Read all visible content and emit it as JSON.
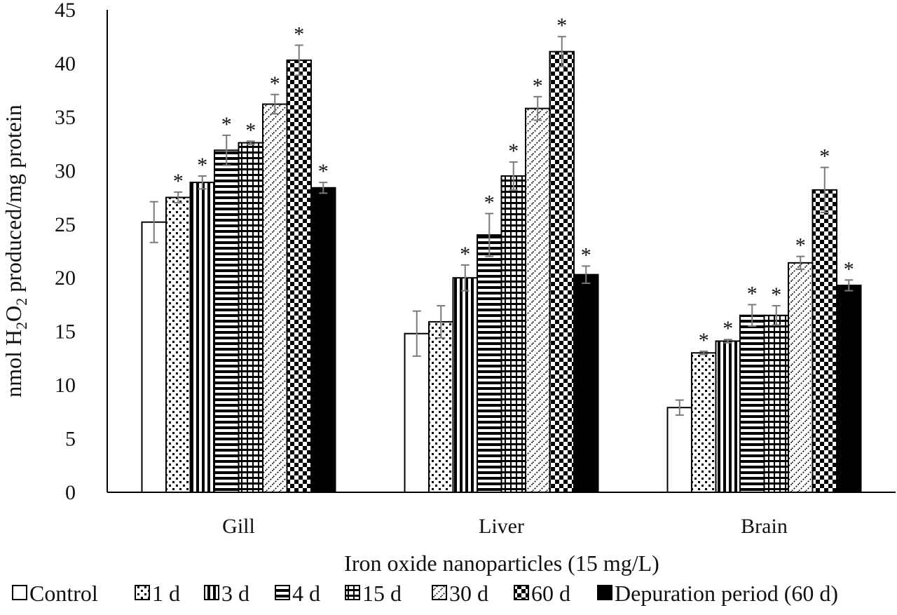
{
  "chart_data": {
    "type": "bar",
    "categories": [
      "Gill",
      "Liver",
      "Brain"
    ],
    "xlabel": "Iron oxide nanoparticles (15 mg/L)",
    "ylabel": {
      "prefix": "nmol H",
      "sub1": "2",
      "mid": "O",
      "sub2": "2",
      "suffix": " produced/mg protein"
    },
    "ylim": [
      0,
      45
    ],
    "yticks": [
      "0",
      "5",
      "10",
      "15",
      "20",
      "25",
      "30",
      "35",
      "40",
      "45"
    ],
    "grid": false,
    "legend_position": "bottom",
    "significance_marker": "*",
    "series": [
      {
        "name": "Control",
        "pattern": "blank",
        "values": [
          25.2,
          14.8,
          7.9
        ],
        "errors": [
          1.9,
          2.1,
          0.7
        ],
        "significant": [
          false,
          false,
          false
        ]
      },
      {
        "name": "1 d",
        "pattern": "dots",
        "values": [
          27.5,
          15.9,
          13.0
        ],
        "errors": [
          0.5,
          1.5,
          0.15
        ],
        "significant": [
          true,
          false,
          true
        ]
      },
      {
        "name": "3 d",
        "pattern": "vlines",
        "values": [
          28.9,
          20.0,
          14.1
        ],
        "errors": [
          0.6,
          1.2,
          0.15
        ],
        "significant": [
          true,
          true,
          true
        ]
      },
      {
        "name": "4 d",
        "pattern": "hlines",
        "values": [
          31.9,
          24.0,
          16.5
        ],
        "errors": [
          1.4,
          2.0,
          1.0
        ],
        "significant": [
          true,
          true,
          true
        ]
      },
      {
        "name": "15 d",
        "pattern": "grid",
        "values": [
          32.6,
          29.5,
          16.5
        ],
        "errors": [
          0.15,
          1.3,
          0.9
        ],
        "significant": [
          true,
          true,
          true
        ]
      },
      {
        "name": "30 d",
        "pattern": "diag",
        "values": [
          36.2,
          35.8,
          21.4
        ],
        "errors": [
          0.9,
          1.1,
          0.6
        ],
        "significant": [
          true,
          true,
          true
        ]
      },
      {
        "name": "60 d",
        "pattern": "checker",
        "values": [
          40.3,
          41.1,
          28.2
        ],
        "errors": [
          1.4,
          1.4,
          2.1
        ],
        "significant": [
          true,
          true,
          true
        ]
      },
      {
        "name": "Depuration period (60 d)",
        "pattern": "solid",
        "values": [
          28.4,
          20.3,
          19.3
        ],
        "errors": [
          0.5,
          0.8,
          0.5
        ],
        "significant": [
          true,
          true,
          true
        ]
      }
    ]
  }
}
